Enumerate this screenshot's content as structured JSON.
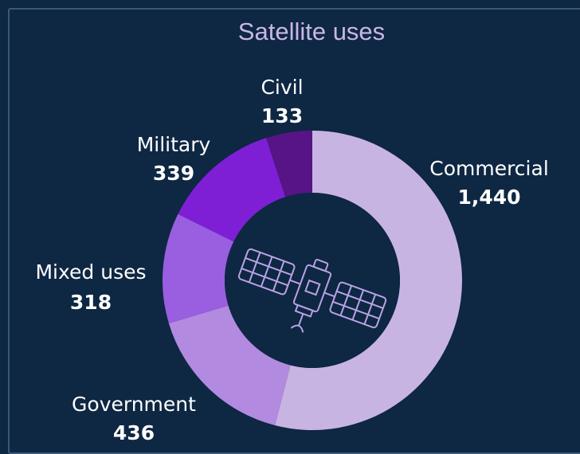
{
  "title": "Satellite uses",
  "colors": {
    "background": "#0e2743",
    "title": "#c9b6e6",
    "Commercial": "#c8b4e3",
    "Government": "#b28ae0",
    "Mixed uses": "#9a5ee0",
    "Military": "#7e1fd6",
    "Civil": "#561487"
  },
  "center_icon": "satellite-icon",
  "chart_data": {
    "type": "pie",
    "donut": true,
    "title": "Satellite uses",
    "categories": [
      "Commercial",
      "Government",
      "Mixed uses",
      "Military",
      "Civil"
    ],
    "values": [
      1440,
      436,
      318,
      339,
      133
    ],
    "value_labels": [
      "1,440",
      "436",
      "318",
      "339",
      "133"
    ],
    "start": "top",
    "direction": "clockwise"
  }
}
